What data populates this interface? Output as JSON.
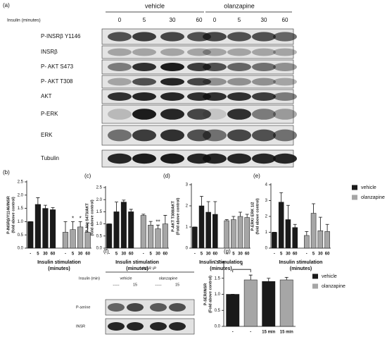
{
  "figure_a": {
    "label": "(a)",
    "axis_label": "Insulin (minutes)",
    "groups": [
      "vehicle",
      "olanzapine"
    ],
    "times": [
      "0",
      "5",
      "30",
      "60",
      "0",
      "5",
      "30",
      "60"
    ],
    "rows": [
      "P-INSRβ Y1146",
      "INSRβ",
      "P- AKT S473",
      "P- AKT T308",
      "AKT",
      "P-ERK",
      "ERK",
      "Tubulin"
    ]
  },
  "figure_f": {
    "label": "(f)",
    "title": "INSR IP",
    "axis_label": "Insulin (min)",
    "groups": [
      "vehicle",
      "olanzapine"
    ],
    "doses": [
      "-----",
      "15",
      "-----",
      "15"
    ],
    "rows": [
      "P-serine",
      "INSR"
    ]
  },
  "chart_data": [
    {
      "type": "bar",
      "label": "(b)",
      "ylabel": [
        "P-INSRβ/Y1146/INSR",
        "(fold above control)"
      ],
      "xlabel": [
        "Insulin stimulation",
        "(minutes)"
      ],
      "categories": [
        "-",
        "5",
        "30",
        "60",
        "-",
        "5",
        "30",
        "60"
      ],
      "series": [
        {
          "color": "#1a1a1a",
          "values": [
            1.0,
            1.65,
            1.5,
            1.45,
            null,
            null,
            null,
            null
          ],
          "errors": [
            0,
            0.25,
            0.12,
            0.08,
            null,
            null,
            null,
            null
          ]
        },
        {
          "color": "#a6a6a6",
          "values": [
            null,
            null,
            null,
            null,
            0.6,
            0.7,
            0.8,
            0.6
          ],
          "errors": [
            null,
            null,
            null,
            null,
            0.4,
            0.3,
            0.2,
            0.35
          ]
        }
      ],
      "annotations": [
        {
          "text": "*"
        },
        {
          "text": "*"
        }
      ],
      "ylim": [
        0,
        2.5
      ],
      "yticks": [
        {
          "value": 0,
          "label": "0.0"
        },
        {
          "value": 0.5,
          "label": "0.5"
        },
        {
          "value": 1,
          "label": "1.0"
        },
        {
          "value": 1.5,
          "label": "1.5"
        },
        {
          "value": 2,
          "label": "2.0"
        },
        {
          "value": 2.5,
          "label": "2.5"
        }
      ]
    },
    {
      "type": "bar",
      "label": "(c)",
      "ylabel": [
        "P-Akt S473/AKT",
        "(fold above control)"
      ],
      "xlabel": [
        "Insulin stimulation",
        "(minutes)"
      ],
      "categories": [
        "-",
        "5",
        "30",
        "60",
        "-",
        "5",
        "30",
        "60"
      ],
      "series": [
        {
          "color": "#1a1a1a",
          "values": [
            1.0,
            1.5,
            1.9,
            1.5,
            null,
            null,
            null,
            null
          ],
          "errors": [
            0,
            0.4,
            0.08,
            0.1,
            null,
            null,
            null,
            null
          ]
        },
        {
          "color": "#a6a6a6",
          "values": [
            null,
            null,
            null,
            null,
            1.35,
            0.95,
            0.8,
            1.0
          ],
          "errors": [
            null,
            null,
            null,
            null,
            0.05,
            0.15,
            0.15,
            0.35
          ]
        }
      ],
      "annotations": [
        {
          "text": "**"
        }
      ],
      "ylim": [
        0,
        2.5
      ],
      "yticks": [
        {
          "value": 0,
          "label": "0.0"
        },
        {
          "value": 0.5,
          "label": "0.5"
        },
        {
          "value": 1,
          "label": "1.0"
        },
        {
          "value": 1.5,
          "label": "1.5"
        },
        {
          "value": 2,
          "label": "2.0"
        },
        {
          "value": 2.5,
          "label": "2.5"
        }
      ]
    },
    {
      "type": "bar",
      "label": "(d)",
      "ylabel": [
        "P-AKT T308/AKT",
        "(Fold above control)"
      ],
      "xlabel": [
        "Insulin stimulation",
        "(minutes)"
      ],
      "categories": [
        "-",
        "5",
        "30",
        "60",
        "-",
        "5",
        "30",
        "60"
      ],
      "series": [
        {
          "color": "#1a1a1a",
          "values": [
            1.0,
            2.0,
            1.7,
            1.6,
            null,
            null,
            null,
            null
          ],
          "errors": [
            0,
            0.45,
            0.5,
            0.6,
            null,
            null,
            null,
            null
          ]
        },
        {
          "color": "#a6a6a6",
          "values": [
            null,
            null,
            null,
            null,
            1.3,
            1.35,
            1.5,
            1.45
          ],
          "errors": [
            null,
            null,
            null,
            null,
            0.05,
            0.15,
            0.2,
            0.15
          ]
        }
      ],
      "ylim": [
        0,
        3
      ],
      "yticks": [
        0,
        1,
        2,
        3
      ]
    },
    {
      "type": "bar",
      "label": "(e)",
      "ylabel": [
        "P-ERK/ ERK 1/2",
        "(fold above control)"
      ],
      "xlabel": [
        "Insulin stimulation",
        "(minutes)"
      ],
      "categories": [
        "-",
        "5",
        "30",
        "60",
        "-",
        "5",
        "30",
        "60"
      ],
      "series": [
        {
          "name": "vehicle",
          "color": "#1a1a1a",
          "values": [
            1.0,
            2.9,
            1.8,
            1.3,
            null,
            null,
            null,
            null
          ],
          "errors": [
            0,
            0.6,
            0.9,
            0.2,
            null,
            null,
            null,
            null
          ]
        },
        {
          "name": "olanzapine",
          "color": "#a6a6a6",
          "values": [
            null,
            null,
            null,
            null,
            0.8,
            2.2,
            1.1,
            1.05
          ],
          "errors": [
            null,
            null,
            null,
            null,
            0.25,
            0.6,
            0.85,
            0.45
          ]
        }
      ],
      "legend": "right",
      "ylim": [
        0,
        4
      ],
      "yticks": [
        0,
        1,
        2,
        3,
        4
      ]
    },
    {
      "type": "bar",
      "label": "(g)",
      "ylabel": [
        "P-SER/INSR",
        "(Fold above control)"
      ],
      "categories": [
        "-",
        "-",
        "15 min",
        "15 min"
      ],
      "series": [
        {
          "name": "vehicle",
          "color": "#1a1a1a",
          "values": [
            1.0,
            null,
            1.4,
            null
          ],
          "errors": [
            0,
            null,
            0.1,
            null
          ]
        },
        {
          "name": "olanzapine",
          "color": "#a6a6a6",
          "values": [
            null,
            1.45,
            null,
            1.45
          ],
          "errors": [
            null,
            0.15,
            null,
            0.08
          ]
        }
      ],
      "annotations": [
        {
          "text": "*"
        }
      ],
      "legend": "right",
      "ylim": [
        0,
        2
      ],
      "yticks": [
        {
          "value": 0,
          "label": "0.0"
        },
        {
          "value": 0.5,
          "label": "0.5"
        },
        {
          "value": 1,
          "label": "1.0"
        },
        {
          "value": 1.5,
          "label": "1.5"
        },
        {
          "value": 2,
          "label": "2.0"
        }
      ]
    }
  ]
}
